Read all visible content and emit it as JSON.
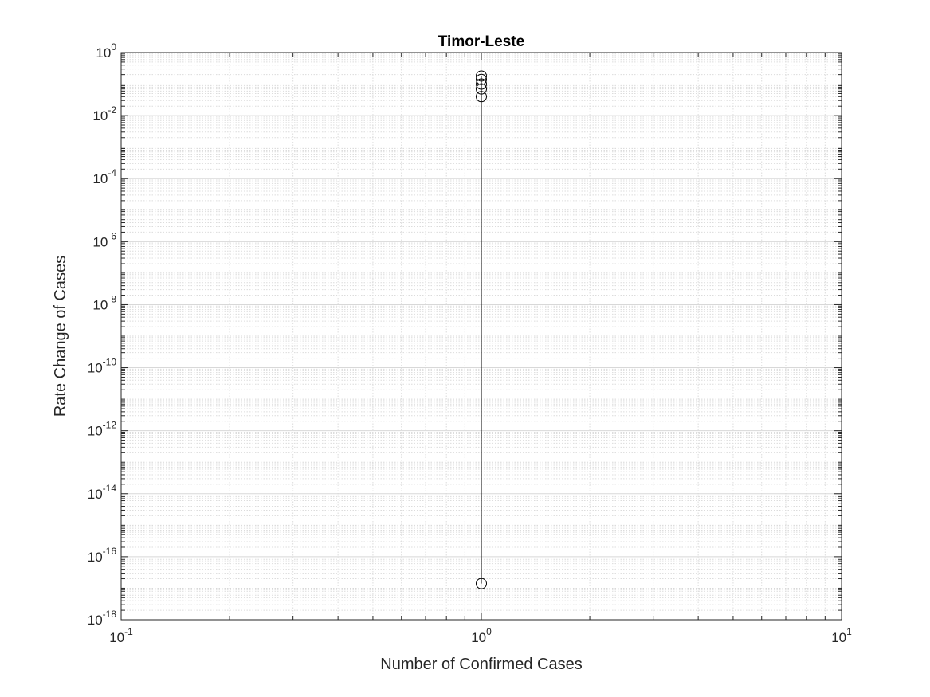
{
  "chart_data": {
    "type": "scatter",
    "title": "Timor-Leste",
    "xlabel": "Number of Confirmed Cases",
    "ylabel": "Rate Change of Cases",
    "x_scale": "log",
    "y_scale": "log",
    "xlim": [
      0.1,
      10
    ],
    "ylim": [
      1e-18,
      1
    ],
    "grid": true,
    "minor_grid": true,
    "x_ticks": [
      {
        "value": 0.1,
        "base": "10",
        "exp": "-1"
      },
      {
        "value": 1,
        "base": "10",
        "exp": "0"
      },
      {
        "value": 10,
        "base": "10",
        "exp": "1"
      }
    ],
    "y_ticks": [
      {
        "value": 1e-18,
        "base": "10",
        "exp": "-18"
      },
      {
        "value": 1e-16,
        "base": "10",
        "exp": "-16"
      },
      {
        "value": 1e-14,
        "base": "10",
        "exp": "-14"
      },
      {
        "value": 1e-12,
        "base": "10",
        "exp": "-12"
      },
      {
        "value": 1e-10,
        "base": "10",
        "exp": "-10"
      },
      {
        "value": 1e-08,
        "base": "10",
        "exp": "-8"
      },
      {
        "value": 1e-06,
        "base": "10",
        "exp": "-6"
      },
      {
        "value": 0.0001,
        "base": "10",
        "exp": "-4"
      },
      {
        "value": 0.01,
        "base": "10",
        "exp": "-2"
      },
      {
        "value": 1,
        "base": "10",
        "exp": "0"
      }
    ],
    "series": [
      {
        "marker": "circle",
        "line": true,
        "color": "#000000",
        "points": [
          {
            "x": 1,
            "y": 1.4e-17
          },
          {
            "x": 1,
            "y": 0.04
          },
          {
            "x": 1,
            "y": 0.07
          },
          {
            "x": 1,
            "y": 0.1
          },
          {
            "x": 1,
            "y": 0.14
          },
          {
            "x": 1,
            "y": 0.18
          }
        ]
      }
    ]
  }
}
